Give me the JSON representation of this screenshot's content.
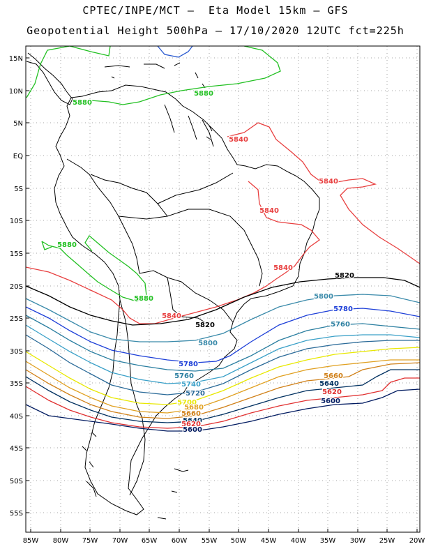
{
  "title_line1": "CPTEC/INPE/MCT –  Eta Model 15km – GFS",
  "title_line2": "Geopotential Height 500hPa – 17/10/2020 12UTC fct=225h",
  "y_ticks": [
    "15N",
    "10N",
    "5N",
    "EQ",
    "5S",
    "10S",
    "15S",
    "20S",
    "25S",
    "30S",
    "35S",
    "40S",
    "45S",
    "50S",
    "55S"
  ],
  "x_ticks": [
    "85W",
    "80W",
    "75W",
    "70W",
    "65W",
    "60W",
    "55W",
    "50W",
    "45W",
    "40W",
    "35W",
    "30W",
    "25W",
    "20W"
  ],
  "contour_colors": {
    "5880": "#22c022",
    "5860": "#ee0000",
    "5840": "#e84040",
    "5820": "#000000",
    "5800": "#3a8aaa",
    "5780": "#1d3fd8",
    "5760": "#2a7ea0",
    "5740": "#3aa0c8",
    "5720": "#2a6a98",
    "5700": "#e8e800",
    "5680": "#e0a020",
    "5660": "#d08018",
    "5640": "#003060",
    "5620": "#e03030",
    "5600": "#001a60",
    "coast": "#000000"
  },
  "contour_labels": [
    {
      "text": "5880",
      "color": "5880"
    },
    {
      "text": "5880",
      "color": "5880"
    },
    {
      "text": "5880",
      "color": "5880"
    },
    {
      "text": "5880",
      "color": "5880"
    },
    {
      "text": "5840",
      "color": "5840"
    },
    {
      "text": "5840",
      "color": "5840"
    },
    {
      "text": "5840",
      "color": "5840"
    },
    {
      "text": "5840",
      "color": "5840"
    },
    {
      "text": "5840",
      "color": "5840"
    },
    {
      "text": "5820",
      "color": "5820"
    },
    {
      "text": "5820",
      "color": "5820"
    },
    {
      "text": "5800",
      "color": "5800"
    },
    {
      "text": "5800",
      "color": "5800"
    },
    {
      "text": "5780",
      "color": "5780"
    },
    {
      "text": "5780",
      "color": "5780"
    },
    {
      "text": "5760",
      "color": "5760"
    },
    {
      "text": "5760",
      "color": "5760"
    },
    {
      "text": "5740",
      "color": "5740"
    },
    {
      "text": "5720",
      "color": "5720"
    },
    {
      "text": "5700",
      "color": "5700"
    },
    {
      "text": "5680",
      "color": "5680"
    },
    {
      "text": "5660",
      "color": "5660"
    },
    {
      "text": "5660",
      "color": "5660"
    },
    {
      "text": "5640",
      "color": "5640"
    },
    {
      "text": "5640",
      "color": "5640"
    },
    {
      "text": "5620",
      "color": "5620"
    },
    {
      "text": "5620",
      "color": "5620"
    },
    {
      "text": "5600",
      "color": "5600"
    },
    {
      "text": "5600",
      "color": "5600"
    }
  ]
}
